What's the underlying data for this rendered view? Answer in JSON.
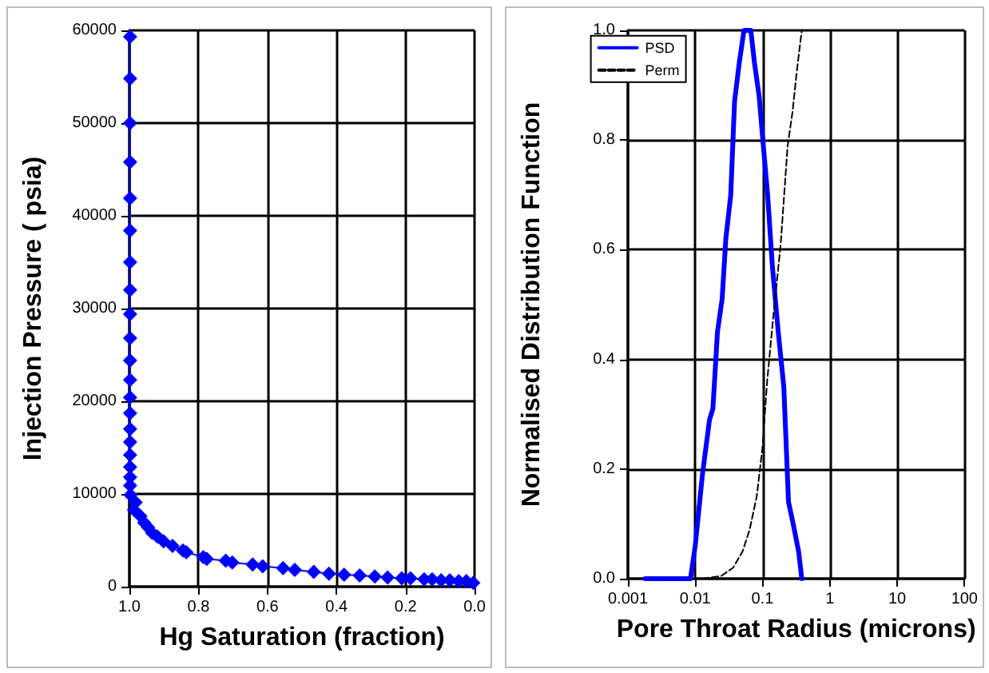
{
  "chart_data": [
    {
      "type": "line",
      "xlabel": "Hg Saturation (fraction)",
      "ylabel": "Injection Pressure ( psia)",
      "xlim": [
        1.0,
        0.0
      ],
      "xticks": [
        {
          "value": 1.0,
          "label": "1.0"
        },
        {
          "value": 0.8,
          "label": "0.8"
        },
        {
          "value": 0.6,
          "label": "0.6"
        },
        {
          "value": 0.4,
          "label": "0.4"
        },
        {
          "value": 0.2,
          "label": "0.2"
        },
        {
          "value": 0.0,
          "label": "0.0"
        }
      ],
      "ylim": [
        0,
        60000
      ],
      "yticks": [
        0,
        10000,
        20000,
        30000,
        40000,
        50000,
        60000
      ],
      "grid": true,
      "legend": false,
      "marker": "diamond",
      "line_style": "solid",
      "series": [
        {
          "color": "#0000ff",
          "x": [
            0.998,
            0.998,
            0.998,
            0.998,
            0.998,
            0.998,
            0.998,
            0.998,
            0.998,
            0.998,
            0.998,
            0.998,
            0.998,
            0.998,
            0.998,
            0.998,
            0.998,
            0.998,
            0.998,
            0.998,
            0.997,
            0.982,
            0.987,
            0.968,
            0.957,
            0.946,
            0.934,
            0.919,
            0.901,
            0.875,
            0.845,
            0.835,
            0.786,
            0.776,
            0.721,
            0.702,
            0.643,
            0.614,
            0.555,
            0.521,
            0.466,
            0.422,
            0.378,
            0.333,
            0.289,
            0.252,
            0.211,
            0.186,
            0.146,
            0.123,
            0.097,
            0.072,
            0.046,
            0.024,
            0.004
          ],
          "values": [
            59300,
            54800,
            50000,
            45800,
            41900,
            38400,
            35000,
            32000,
            29400,
            26800,
            24400,
            22300,
            20400,
            18700,
            17000,
            15600,
            14200,
            12900,
            11800,
            10900,
            9900,
            9100,
            8300,
            7600,
            6900,
            6400,
            5800,
            5400,
            4900,
            4400,
            3900,
            3700,
            3200,
            3000,
            2800,
            2600,
            2400,
            2200,
            2000,
            1800,
            1600,
            1400,
            1300,
            1200,
            1100,
            1000,
            900,
            900,
            800,
            800,
            700,
            700,
            600,
            600,
            400
          ]
        }
      ]
    },
    {
      "type": "line",
      "xlabel": "Pore Throat Radius (microns)",
      "ylabel": "Normalised Distribution Function",
      "log": "x",
      "xlim": [
        0.001,
        100
      ],
      "xticks": [
        0.001,
        0.01,
        0.1,
        1,
        10,
        100
      ],
      "ylim": [
        0,
        1.0
      ],
      "yticks": [
        {
          "value": 0,
          "label": "0.0"
        },
        {
          "value": 0.2,
          "label": "0.2"
        },
        {
          "value": 0.4,
          "label": "0.4"
        },
        {
          "value": 0.6,
          "label": "0.6"
        },
        {
          "value": 0.8,
          "label": "0.8"
        },
        {
          "value": 1.0,
          "label": "1.0"
        }
      ],
      "grid": true,
      "legend": "top left",
      "marker": "none",
      "series": [
        {
          "name": "PSD",
          "color": "#0000ff",
          "line_style": "solid",
          "x": [
            0.0018,
            0.0085,
            0.01,
            0.0128,
            0.0163,
            0.0183,
            0.0214,
            0.0251,
            0.0285,
            0.0337,
            0.0384,
            0.045,
            0.053,
            0.059,
            0.067,
            0.076,
            0.089,
            0.101,
            0.119,
            0.14,
            0.171,
            0.207,
            0.243,
            0.285,
            0.343,
            0.383
          ],
          "values": [
            0,
            0,
            0.06,
            0.19,
            0.29,
            0.31,
            0.45,
            0.51,
            0.62,
            0.7,
            0.87,
            0.94,
            1.0,
            1.0,
            1.0,
            0.94,
            0.88,
            0.8,
            0.7,
            0.57,
            0.45,
            0.35,
            0.14,
            0.1,
            0.05,
            0
          ]
        },
        {
          "name": "Perm",
          "color": "#000000",
          "line_style": "dashed",
          "x": [
            0.0128,
            0.0244,
            0.0366,
            0.0506,
            0.0645,
            0.082,
            0.1,
            0.117,
            0.145,
            0.186,
            0.236,
            0.278,
            0.326,
            0.383
          ],
          "values": [
            0,
            0.005,
            0.02,
            0.05,
            0.09,
            0.15,
            0.24,
            0.36,
            0.48,
            0.61,
            0.79,
            0.85,
            0.93,
            1.0
          ]
        }
      ]
    }
  ]
}
